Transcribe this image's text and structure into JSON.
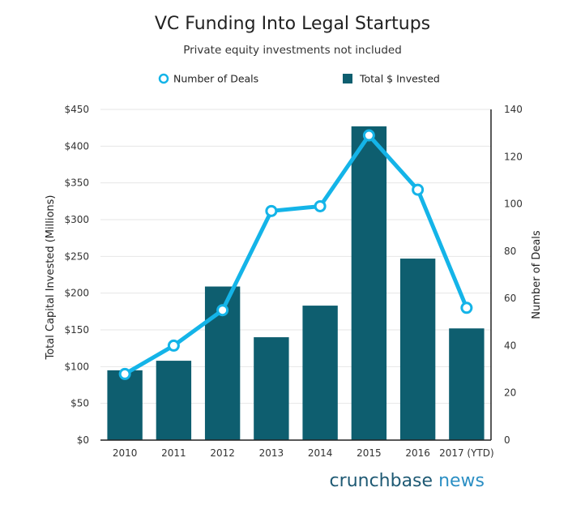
{
  "chart_data": {
    "type": "bar",
    "title": "VC Funding Into Legal Startups",
    "subtitle": "Private equity investments not included",
    "categories": [
      "2010",
      "2011",
      "2012",
      "2013",
      "2014",
      "2015",
      "2016",
      "2017 (YTD)"
    ],
    "series": [
      {
        "name": "Total $ Invested",
        "type": "bar",
        "axis": "left",
        "values": [
          95,
          108,
          209,
          140,
          183,
          427,
          247,
          152
        ]
      },
      {
        "name": "Number of Deals",
        "type": "line",
        "axis": "right",
        "values": [
          28,
          40,
          55,
          97,
          99,
          129,
          106,
          56
        ]
      }
    ],
    "ylabel": "Total Capital Invested (Millions)",
    "y2label": "Number of Deals",
    "ylim": [
      0,
      450
    ],
    "y2lim": [
      0,
      140
    ],
    "yticks": [
      "$0",
      "$50",
      "$100",
      "$150",
      "$200",
      "$250",
      "$300",
      "$350",
      "$400",
      "$450"
    ],
    "y2ticks": [
      "0",
      "20",
      "40",
      "60",
      "80",
      "100",
      "120",
      "140"
    ],
    "legend_position": "top-center",
    "grid": true,
    "colors": {
      "bar": "#0e5e6f",
      "line": "#14b4e8",
      "grid": "#e6e6e6"
    }
  },
  "branding": {
    "left": "crunchbase",
    "right": "news",
    "color_left": "#1f5a74",
    "color_right": "#2c8fc4"
  }
}
